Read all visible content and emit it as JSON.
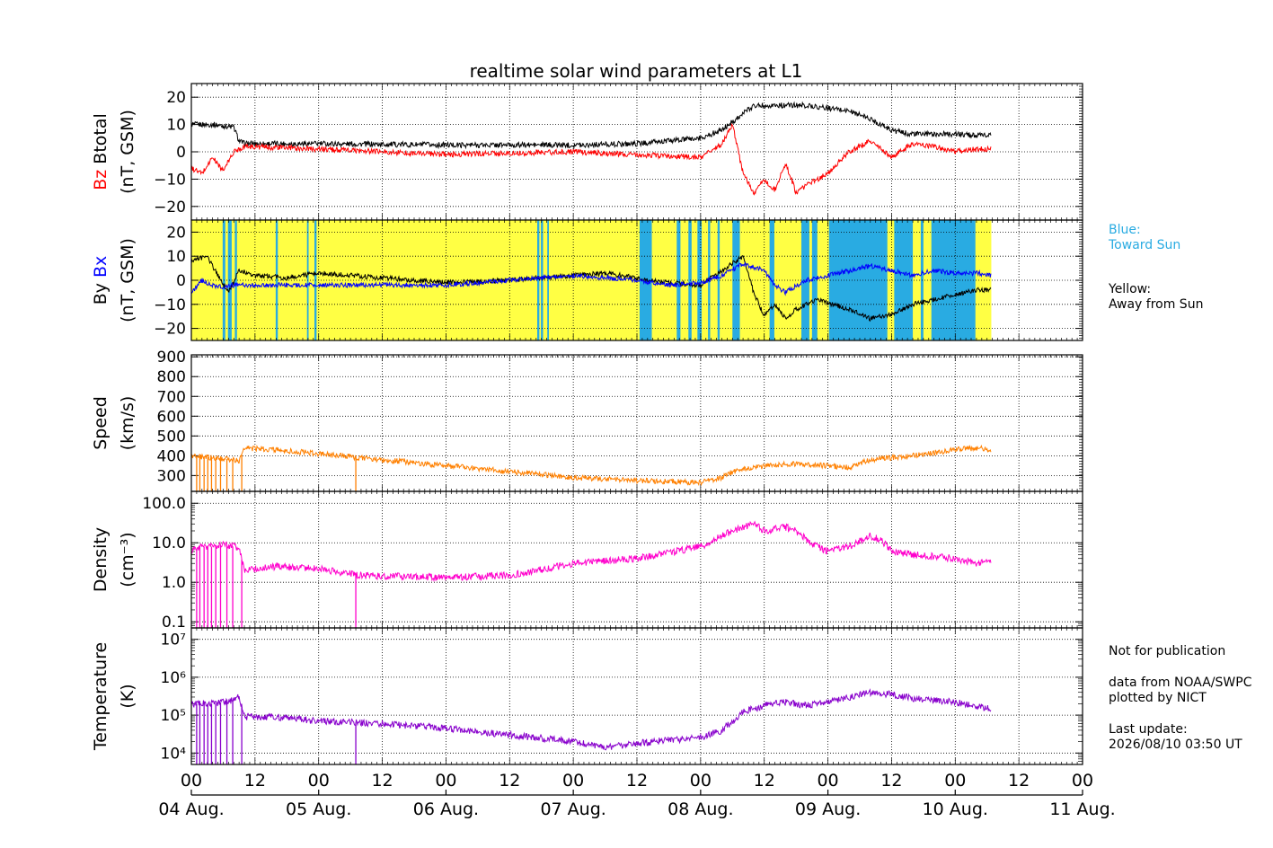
{
  "chart_data": {
    "type": "line",
    "title": "realtime solar wind parameters at L1",
    "time_axis": {
      "start": "2026-08-04T00:00",
      "end": "2026-08-11T00:00",
      "hour_ticks": [
        "00",
        "12",
        "00",
        "12",
        "00",
        "12",
        "00",
        "12",
        "00",
        "12",
        "00",
        "12",
        "00",
        "12",
        "00"
      ],
      "day_labels": [
        "04 Aug.",
        "05 Aug.",
        "06 Aug.",
        "07 Aug.",
        "08 Aug.",
        "09 Aug.",
        "10 Aug.",
        "11 Aug."
      ],
      "data_end": "2026-08-10T03:50"
    },
    "panels": [
      {
        "id": "bfield",
        "ylabel_parts": [
          "Bz",
          "Btotal"
        ],
        "yunit": "(nT, GSM)",
        "ylim": [
          -25,
          25
        ],
        "yticks": [
          "20",
          "10",
          "0",
          "−10",
          "−20"
        ],
        "series": [
          {
            "name": "Btotal",
            "color": "#000000",
            "t": [
              0,
              4,
              8,
              9,
              10,
              24,
              48,
              72,
              84,
              96,
              100,
              104,
              106,
              108,
              112,
              116,
              120,
              124,
              128,
              132,
              134,
              136,
              144,
              148,
              150.8
            ],
            "v": [
              10,
              10,
              9,
              4,
              3,
              3,
              2.5,
              2.5,
              3,
              5,
              8,
              14,
              17,
              17,
              17,
              17,
              16,
              15,
              12,
              8,
              7,
              6.5,
              6.5,
              6,
              6
            ]
          },
          {
            "name": "Bz",
            "color": "#ff0000",
            "t": [
              0,
              2,
              4,
              6,
              8,
              10,
              24,
              48,
              72,
              84,
              96,
              100,
              102,
              104,
              106,
              108,
              110,
              112,
              114,
              116,
              120,
              124,
              128,
              132,
              136,
              140,
              144,
              148,
              150.8
            ],
            "v": [
              -6,
              -8,
              -2,
              -7,
              0,
              2,
              1,
              -1,
              0,
              -1,
              -2,
              3,
              10,
              -8,
              -15,
              -10,
              -14,
              -4,
              -15,
              -12,
              -8,
              0,
              4,
              -2,
              3,
              2,
              0,
              1,
              1
            ]
          }
        ]
      },
      {
        "id": "bxby",
        "ylabel_parts": [
          "By",
          "Bx"
        ],
        "yunit": "(nT, GSM)",
        "ylim": [
          -25,
          25
        ],
        "yticks": [
          "20",
          "10",
          "0",
          "−10",
          "−20"
        ],
        "sector_colors": {
          "toward": "#29abe2",
          "away": "#ffff44"
        },
        "toward_sun_intervals": [
          [
            5.9,
            6.4
          ],
          [
            6.9,
            7.6
          ],
          [
            8.2,
            8.6
          ],
          [
            15.9,
            16.3
          ],
          [
            21.8,
            22.1
          ],
          [
            23.2,
            23.6
          ],
          [
            65.2,
            65.6
          ],
          [
            65.9,
            66.3
          ],
          [
            67.1,
            67.4
          ],
          [
            84.5,
            86.8
          ],
          [
            91.5,
            92.2
          ],
          [
            93.7,
            94.3
          ],
          [
            95.4,
            96.2
          ],
          [
            97.4,
            97.8
          ],
          [
            99.2,
            99.6
          ],
          [
            102,
            103.4
          ],
          [
            109,
            109.9
          ],
          [
            115,
            116.5
          ],
          [
            117,
            118
          ],
          [
            120.2,
            131.2
          ],
          [
            132.5,
            136
          ],
          [
            137.5,
            138
          ],
          [
            139.5,
            147.8
          ]
        ],
        "series": [
          {
            "name": "By",
            "color": "#000000",
            "t": [
              0,
              3,
              5,
              7,
              9,
              12,
              18,
              24,
              36,
              48,
              60,
              72,
              78,
              84,
              90,
              96,
              100,
              104,
              106,
              108,
              110,
              112,
              114,
              118,
              124,
              128,
              132,
              136,
              140,
              144,
              148,
              150.8
            ],
            "v": [
              8,
              10,
              2,
              -5,
              4,
              2,
              1,
              3,
              1,
              -1,
              0,
              2,
              3,
              1,
              -1,
              -2,
              4,
              10,
              -5,
              -15,
              -10,
              -16,
              -12,
              -8,
              -12,
              -16,
              -14,
              -10,
              -8,
              -6,
              -4,
              -4
            ]
          },
          {
            "name": "Bx",
            "color": "#0000ff",
            "t": [
              0,
              2,
              4,
              6,
              8,
              12,
              24,
              48,
              72,
              84,
              90,
              96,
              100,
              104,
              108,
              110,
              112,
              116,
              120,
              124,
              128,
              132,
              136,
              140,
              144,
              148,
              150.8
            ],
            "v": [
              -5,
              0,
              -2,
              -3,
              -2,
              -2,
              -2,
              -2,
              2,
              0,
              -2,
              -1,
              2,
              7,
              4,
              -2,
              -5,
              0,
              2,
              4,
              6,
              4,
              2,
              4,
              3,
              3,
              2
            ]
          }
        ]
      },
      {
        "id": "speed",
        "ylabel_parts": [
          "Speed"
        ],
        "yunit": "(km/s)",
        "ylim": [
          220,
          910
        ],
        "yticks": [
          "900",
          "800",
          "700",
          "600",
          "500",
          "400",
          "300"
        ],
        "series": [
          {
            "name": "Speed",
            "color": "#ff8000",
            "t": [
              0,
              4,
              8,
              9,
              10,
              16,
              24,
              36,
              48,
              60,
              72,
              84,
              96,
              100,
              102,
              106,
              112,
              120,
              124,
              128,
              136,
              144,
              148,
              150.8
            ],
            "v": [
              400,
              390,
              380,
              370,
              440,
              430,
              410,
              380,
              350,
              320,
              290,
              275,
              265,
              290,
              320,
              340,
              360,
              350,
              340,
              380,
              400,
              430,
              440,
              430
            ]
          }
        ]
      },
      {
        "id": "density",
        "ylabel_parts": [
          "Density"
        ],
        "yunit": "(cm⁻³)",
        "log": true,
        "ylim": [
          0.07,
          200
        ],
        "yticks": [
          "100.0",
          "10.0",
          "1.0",
          "0.1"
        ],
        "series": [
          {
            "name": "Density",
            "color": "#ff00cc",
            "t": [
              0,
              2,
              4,
              6,
              8,
              9,
              10,
              16,
              24,
              32,
              48,
              60,
              72,
              84,
              96,
              102,
              106,
              108,
              112,
              114,
              116,
              118,
              120,
              124,
              128,
              130,
              132,
              136,
              144,
              148,
              150.8
            ],
            "v": [
              6,
              8,
              8,
              9,
              8,
              7,
              2,
              2.5,
              2.2,
              1.5,
              1.3,
              1.5,
              3,
              4,
              8,
              20,
              30,
              20,
              25,
              20,
              12,
              8,
              6,
              8,
              15,
              12,
              6,
              5,
              4,
              3,
              3.5
            ]
          }
        ]
      },
      {
        "id": "temperature",
        "ylabel_parts": [
          "Temperature"
        ],
        "yunit": "(K)",
        "log": true,
        "ylim": [
          5000,
          20000000
        ],
        "yticks": [
          "10⁷",
          "10⁶",
          "10⁵",
          "10⁴"
        ],
        "series": [
          {
            "name": "Temperature",
            "color": "#8800cc",
            "t": [
              0,
              4,
              8,
              9,
              10,
              16,
              24,
              36,
              48,
              60,
              72,
              78,
              84,
              90,
              96,
              100,
              104,
              108,
              112,
              116,
              120,
              124,
              128,
              132,
              136,
              144,
              148,
              150.8
            ],
            "v": [
              200000,
              200000,
              250000,
              300000,
              90000,
              90000,
              70000,
              60000,
              45000,
              30000,
              20000,
              14000,
              18000,
              22000,
              25000,
              40000,
              120000,
              180000,
              220000,
              180000,
              220000,
              300000,
              400000,
              350000,
              280000,
              220000,
              170000,
              150000
            ]
          }
        ]
      }
    ]
  },
  "side_notes": {
    "blue_label": "Blue:",
    "blue_desc": "Toward Sun",
    "yellow_label": "Yellow:",
    "yellow_desc": "Away from Sun",
    "not_for_pub": "Not for publication",
    "data_from": "data from NOAA/SWPC",
    "plotted_by": "plotted by NICT",
    "last_update_label": "Last update:",
    "last_update_value": "2026/08/10 03:50 UT"
  }
}
